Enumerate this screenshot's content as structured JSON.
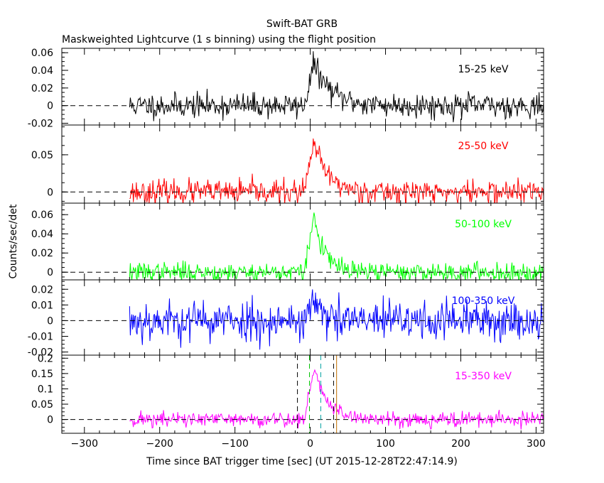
{
  "title": "Swift-BAT GRB",
  "subtitle": "Maskweighted Lightcurve (1 s binning) using the flight position",
  "colors": {
    "background": "#ffffff",
    "axes": "#000000",
    "zero_line": "#000000",
    "marker_t90": "#000000",
    "marker_peak": "#00c000",
    "marker_extra": "#00a0a0",
    "marker_end": "#c07000"
  },
  "chart_data": {
    "type": "line",
    "xlabel": "Time since BAT trigger time [sec] (UT 2015-12-28T22:47:14.9)",
    "ylabel": "Counts/sec/det",
    "xlim": [
      -330,
      310
    ],
    "xticks": [
      -300,
      -200,
      -100,
      0,
      100,
      200,
      300
    ],
    "time_range": [
      -240,
      310
    ],
    "burst": {
      "start": -8,
      "peak": 5,
      "end": 35
    },
    "vertical_markers": [
      {
        "x": -17,
        "color": "#000000",
        "dash": true
      },
      {
        "x": -1,
        "color": "#00c000",
        "dash": true
      },
      {
        "x": 14,
        "color": "#00a0a0",
        "dash": true
      },
      {
        "x": 31,
        "color": "#000000",
        "dash": true
      },
      {
        "x": 35,
        "color": "#c07000",
        "dash": false
      }
    ],
    "panels": [
      {
        "label": "15-25 keV",
        "color": "#000000",
        "ylim": [
          -0.022,
          0.065
        ],
        "yticks": [
          -0.02,
          0,
          0.02,
          0.04,
          0.06
        ],
        "yticklabels": [
          "-0.02",
          "0",
          "0.02",
          "0.04",
          "0.06"
        ],
        "noise": 0.007,
        "peak": 0.048,
        "decay": 22,
        "seed": 11
      },
      {
        "label": "25-50 keV",
        "color": "#ff0000",
        "ylim": [
          -0.015,
          0.09
        ],
        "yticks": [
          0,
          0.05
        ],
        "yticklabels": [
          "0",
          "0.05"
        ],
        "noise": 0.008,
        "peak": 0.066,
        "decay": 18,
        "seed": 23
      },
      {
        "label": "50-100 keV",
        "color": "#00ff00",
        "ylim": [
          -0.008,
          0.072
        ],
        "yticks": [
          0,
          0.02,
          0.04,
          0.06
        ],
        "yticklabels": [
          "0",
          "0.02",
          "0.04",
          "0.06"
        ],
        "noise": 0.005,
        "peak": 0.058,
        "decay": 14,
        "seed": 37
      },
      {
        "label": "100-350 keV",
        "color": "#0000ff",
        "ylim": [
          -0.022,
          0.026
        ],
        "yticks": [
          -0.02,
          -0.01,
          0,
          0.01,
          0.02
        ],
        "yticklabels": [
          "-0.02",
          "-0.01",
          "0",
          "0.01",
          "0.02"
        ],
        "noise": 0.0065,
        "peak": 0.014,
        "decay": 8,
        "seed": 53
      },
      {
        "label": "15-350 keV",
        "color": "#ff00ff",
        "ylim": [
          -0.045,
          0.21
        ],
        "yticks": [
          0,
          0.05,
          0.1,
          0.15,
          0.2
        ],
        "yticklabels": [
          "0",
          "0.05",
          "0.1",
          "0.15",
          "0.2"
        ],
        "noise": 0.013,
        "peak": 0.165,
        "decay": 18,
        "seed": 71
      }
    ]
  }
}
